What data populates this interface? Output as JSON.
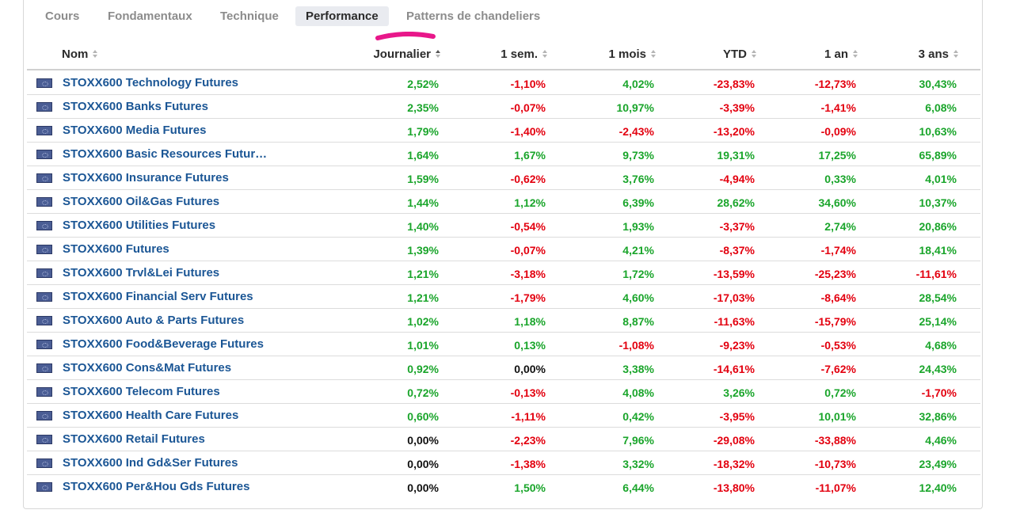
{
  "tabs": [
    {
      "label": "Cours",
      "active": false
    },
    {
      "label": "Fondamentaux",
      "active": false
    },
    {
      "label": "Technique",
      "active": false
    },
    {
      "label": "Performance",
      "active": true
    },
    {
      "label": "Patterns de chandeliers",
      "active": false
    }
  ],
  "highlight_color": "#e8178a",
  "columns": [
    "Nom",
    "Journalier",
    "1 sem.",
    "1 mois",
    "YTD",
    "1 an",
    "3 ans"
  ],
  "rows": [
    {
      "name": "STOXX600 Technology Futures",
      "values": [
        "2,52%",
        "-1,10%",
        "4,02%",
        "-23,83%",
        "-12,73%",
        "30,43%"
      ]
    },
    {
      "name": "STOXX600 Banks Futures",
      "values": [
        "2,35%",
        "-0,07%",
        "10,97%",
        "-3,39%",
        "-1,41%",
        "6,08%"
      ]
    },
    {
      "name": "STOXX600 Media Futures",
      "values": [
        "1,79%",
        "-1,40%",
        "-2,43%",
        "-13,20%",
        "-0,09%",
        "10,63%"
      ]
    },
    {
      "name": "STOXX600 Basic Resources Futur…",
      "values": [
        "1,64%",
        "1,67%",
        "9,73%",
        "19,31%",
        "17,25%",
        "65,89%"
      ]
    },
    {
      "name": "STOXX600 Insurance Futures",
      "values": [
        "1,59%",
        "-0,62%",
        "3,76%",
        "-4,94%",
        "0,33%",
        "4,01%"
      ]
    },
    {
      "name": "STOXX600 Oil&Gas Futures",
      "values": [
        "1,44%",
        "1,12%",
        "6,39%",
        "28,62%",
        "34,60%",
        "10,37%"
      ]
    },
    {
      "name": "STOXX600 Utilities Futures",
      "values": [
        "1,40%",
        "-0,54%",
        "1,93%",
        "-3,37%",
        "2,74%",
        "20,86%"
      ]
    },
    {
      "name": "STOXX600 Futures",
      "values": [
        "1,39%",
        "-0,07%",
        "4,21%",
        "-8,37%",
        "-1,74%",
        "18,41%"
      ]
    },
    {
      "name": "STOXX600 Trvl&Lei Futures",
      "values": [
        "1,21%",
        "-3,18%",
        "1,72%",
        "-13,59%",
        "-25,23%",
        "-11,61%"
      ]
    },
    {
      "name": "STOXX600 Financial Serv Futures",
      "values": [
        "1,21%",
        "-1,79%",
        "4,60%",
        "-17,03%",
        "-8,64%",
        "28,54%"
      ]
    },
    {
      "name": "STOXX600 Auto & Parts Futures",
      "values": [
        "1,02%",
        "1,18%",
        "8,87%",
        "-11,63%",
        "-15,79%",
        "25,14%"
      ]
    },
    {
      "name": "STOXX600 Food&Beverage Futures",
      "values": [
        "1,01%",
        "0,13%",
        "-1,08%",
        "-9,23%",
        "-0,53%",
        "4,68%"
      ]
    },
    {
      "name": "STOXX600 Cons&Mat Futures",
      "values": [
        "0,92%",
        "0,00%",
        "3,38%",
        "-14,61%",
        "-7,62%",
        "24,43%"
      ]
    },
    {
      "name": "STOXX600 Telecom Futures",
      "values": [
        "0,72%",
        "-0,13%",
        "4,08%",
        "3,26%",
        "0,72%",
        "-1,70%"
      ]
    },
    {
      "name": "STOXX600 Health Care Futures",
      "values": [
        "0,60%",
        "-1,11%",
        "0,42%",
        "-3,95%",
        "10,01%",
        "32,86%"
      ]
    },
    {
      "name": "STOXX600 Retail Futures",
      "values": [
        "0,00%",
        "-2,23%",
        "7,96%",
        "-29,08%",
        "-33,88%",
        "4,46%"
      ]
    },
    {
      "name": "STOXX600 Ind Gd&Ser Futures",
      "values": [
        "0,00%",
        "-1,38%",
        "3,32%",
        "-18,32%",
        "-10,73%",
        "23,49%"
      ]
    },
    {
      "name": "STOXX600 Per&Hou Gds Futures",
      "values": [
        "0,00%",
        "1,50%",
        "6,44%",
        "-13,80%",
        "-11,07%",
        "12,40%"
      ]
    }
  ]
}
